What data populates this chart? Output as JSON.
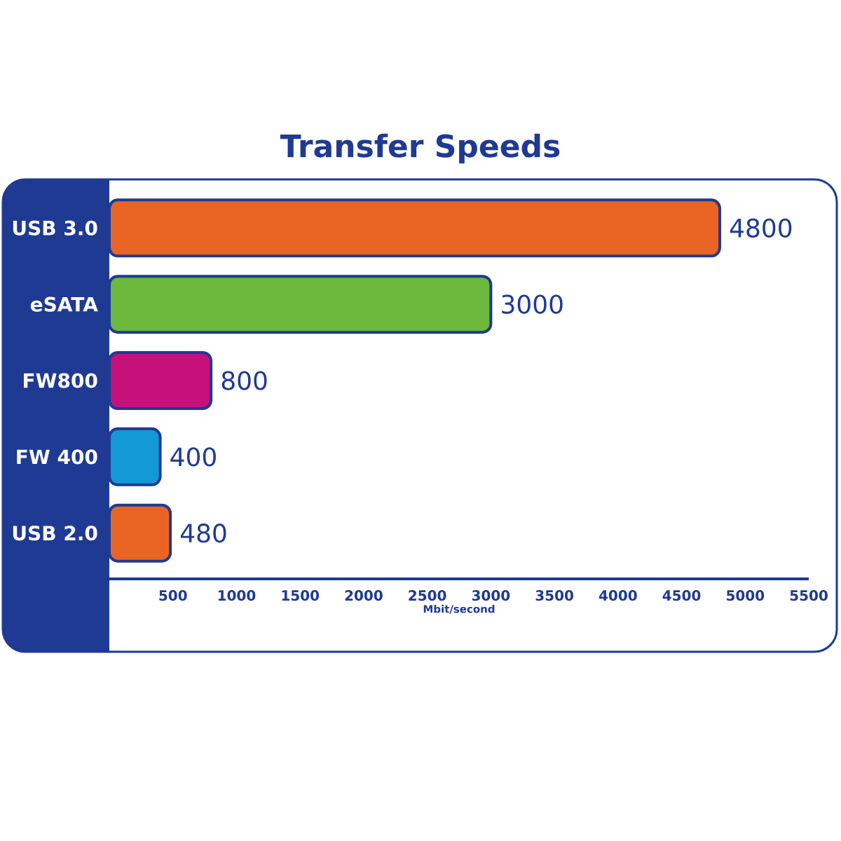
{
  "chart_data": {
    "type": "bar",
    "orientation": "horizontal",
    "title": "Transfer Speeds",
    "xlabel": "Mbit/second",
    "categories": [
      "USB 3.0",
      "eSATA",
      "FW800",
      "FW 400",
      "USB 2.0"
    ],
    "values": [
      4800,
      3000,
      800,
      400,
      480
    ],
    "colors": [
      "#ea6524",
      "#6cb83c",
      "#c6107a",
      "#1399d3",
      "#ea6524"
    ],
    "xlim": [
      0,
      5500
    ],
    "xticks": [
      500,
      1000,
      1500,
      2000,
      2500,
      3000,
      3500,
      4000,
      4500,
      5000,
      5500
    ],
    "data_labels": true,
    "grid": false
  }
}
